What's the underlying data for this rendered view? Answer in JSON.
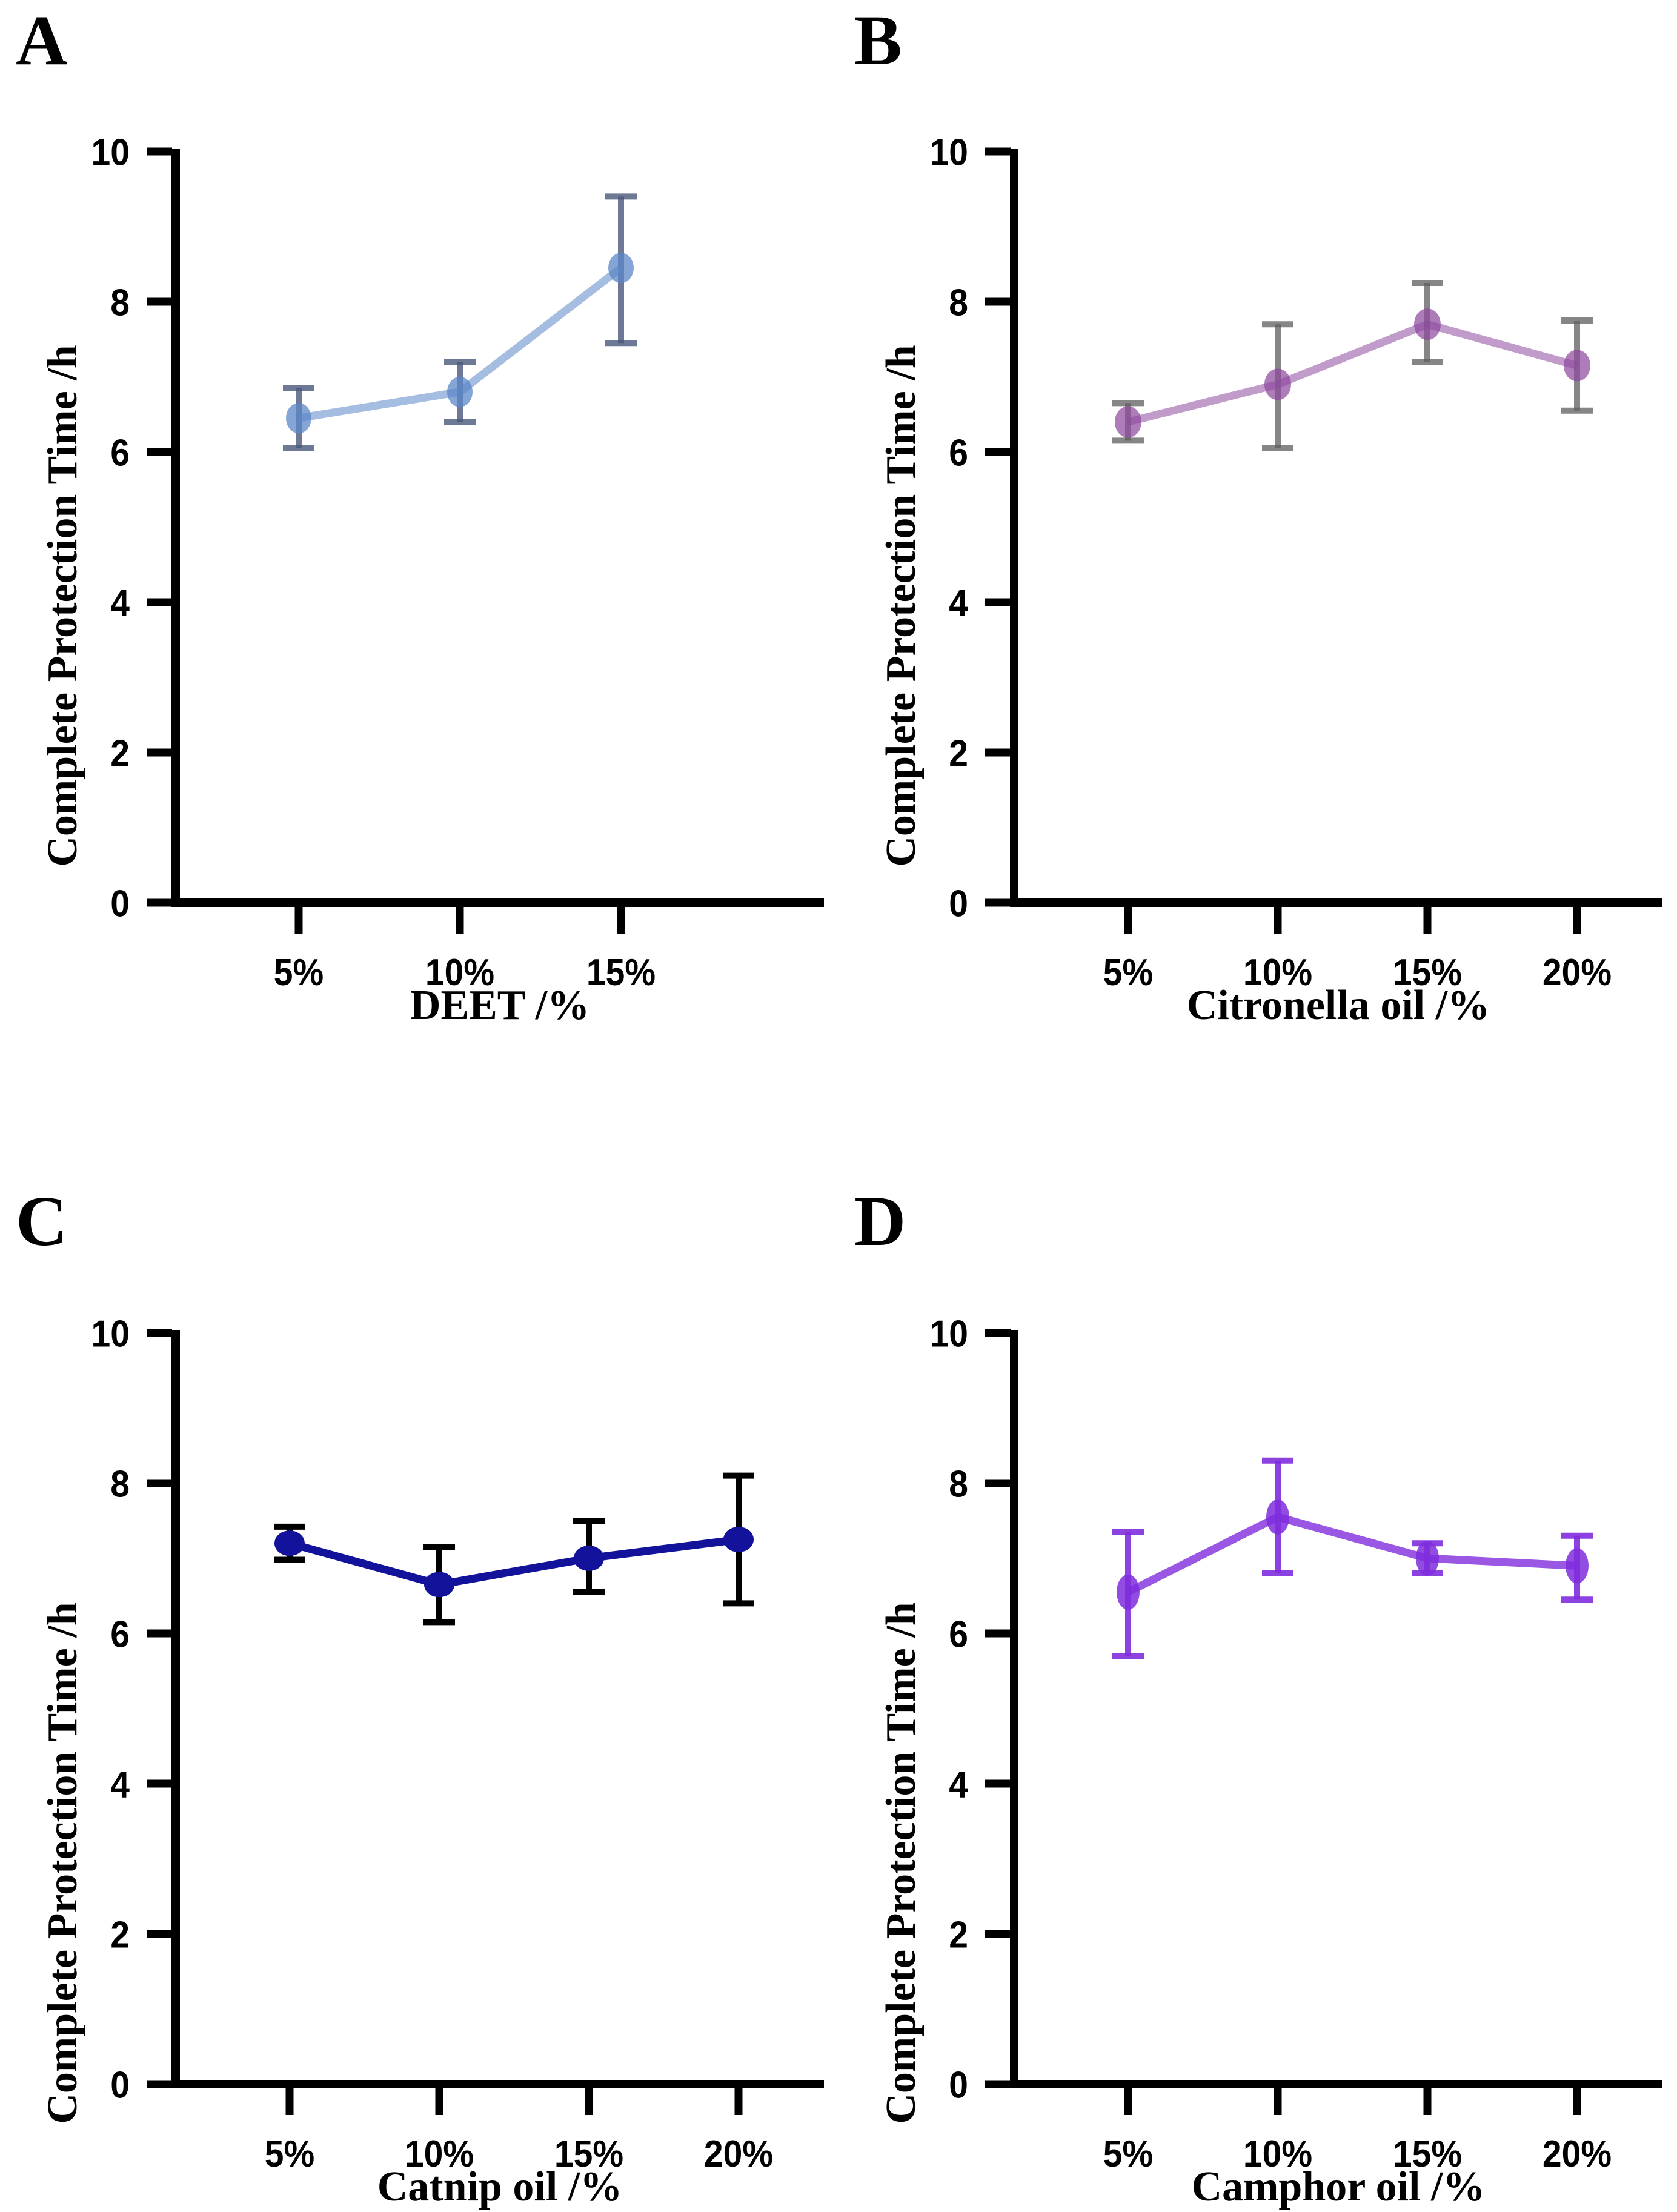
{
  "figure": {
    "ylabel_shared": "Complete Protection Time /h"
  },
  "chart_data": [
    {
      "type": "line",
      "panel_label": "A",
      "xlabel": "DEET /%",
      "ylabel": "Complete Protection Time /h",
      "categories": [
        "5%",
        "10%",
        "15%"
      ],
      "values": [
        6.45,
        6.8,
        8.45
      ],
      "err_low": [
        6.05,
        6.4,
        7.45
      ],
      "err_high": [
        6.85,
        7.2,
        9.4
      ],
      "ylim": [
        0,
        10
      ],
      "yticks": [
        "0",
        "2",
        "4",
        "6",
        "8",
        "10"
      ],
      "legend": "none",
      "grid": "off",
      "colors": {
        "point": "#5b87c7",
        "line": "#5b87c7",
        "error": "#49587a"
      },
      "opacity": {
        "point": 0.75,
        "line": 0.55,
        "error": 0.8
      }
    },
    {
      "type": "line",
      "panel_label": "B",
      "xlabel": "Citronella oil /%",
      "ylabel": "Complete Protection Time /h",
      "categories": [
        "5%",
        "10%",
        "15%",
        "20%"
      ],
      "values": [
        6.4,
        6.9,
        7.7,
        7.15
      ],
      "err_low": [
        6.15,
        6.05,
        7.2,
        6.55
      ],
      "err_high": [
        6.65,
        7.7,
        8.25,
        7.75
      ],
      "ylim": [
        0,
        10
      ],
      "yticks": [
        "0",
        "2",
        "4",
        "6",
        "8",
        "10"
      ],
      "legend": "none",
      "grid": "off",
      "colors": {
        "point": "#8e4a9e",
        "line": "#8e4a9e",
        "error": "#5e5e5e"
      },
      "opacity": {
        "point": 0.72,
        "line": 0.55,
        "error": 0.75
      }
    },
    {
      "type": "line",
      "panel_label": "C",
      "xlabel": "Catnip oil /%",
      "ylabel": "Complete Protection Time /h",
      "categories": [
        "5%",
        "10%",
        "15%",
        "20%"
      ],
      "values": [
        7.2,
        6.65,
        7.0,
        7.25
      ],
      "err_low": [
        6.98,
        6.15,
        6.55,
        6.4
      ],
      "err_high": [
        7.42,
        7.15,
        7.5,
        8.1
      ],
      "ylim": [
        0,
        10
      ],
      "yticks": [
        "0",
        "2",
        "4",
        "6",
        "8",
        "10"
      ],
      "legend": "none",
      "grid": "off",
      "colors": {
        "point": "#12129b",
        "line": "#12129b",
        "error": "#000000"
      },
      "opacity": {
        "point": 1,
        "line": 1,
        "error": 1
      }
    },
    {
      "type": "line",
      "panel_label": "D",
      "xlabel": "Camphor oil /%",
      "ylabel": "Complete Protection Time /h",
      "categories": [
        "5%",
        "10%",
        "15%",
        "20%"
      ],
      "values": [
        6.55,
        7.55,
        7.0,
        6.9
      ],
      "err_low": [
        5.7,
        6.8,
        6.8,
        6.45
      ],
      "err_high": [
        7.35,
        8.3,
        7.2,
        7.3
      ],
      "ylim": [
        0,
        10
      ],
      "yticks": [
        "0",
        "2",
        "4",
        "6",
        "8",
        "10"
      ],
      "legend": "none",
      "grid": "off",
      "colors": {
        "point": "#7f2ddd",
        "line": "#7f2ddd",
        "error": "#7f2ddd"
      },
      "opacity": {
        "point": 0.85,
        "line": 0.8,
        "error": 0.9
      }
    }
  ]
}
